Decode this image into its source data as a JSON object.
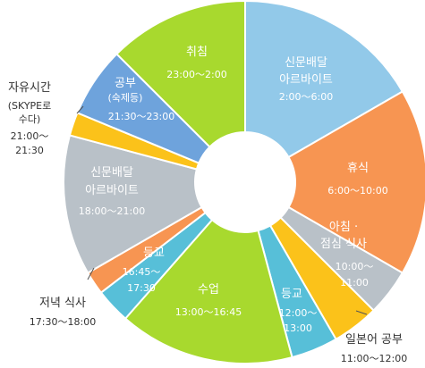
{
  "chart_data": {
    "type": "pie",
    "variant": "donut",
    "unit": "hours",
    "slices": [
      {
        "name": "신문배달 아르바이트",
        "time": "2:00～6:00",
        "value": 4,
        "color": "#92c9e9"
      },
      {
        "name": "휴식",
        "time": "6:00～10:00",
        "value": 4,
        "color": "#f79552"
      },
      {
        "name": "아침 · 점심 식사",
        "time": "10:00～11:00",
        "value": 1,
        "color": "#b9c1c8"
      },
      {
        "name": "일본어 공부",
        "time": "11:00～12:00",
        "value": 1,
        "color": "#fbc21a"
      },
      {
        "name": "등교",
        "time": "12:00～13:00",
        "value": 1,
        "color": "#57bfd8"
      },
      {
        "name": "수업",
        "time": "13:00～16:45",
        "value": 3.75,
        "color": "#a8d92e"
      },
      {
        "name": "등교",
        "time": "16:45～17:30",
        "value": 0.75,
        "color": "#57bfd8"
      },
      {
        "name": "저녁 식사",
        "time": "17:30～18:00",
        "value": 0.5,
        "color": "#f79552"
      },
      {
        "name": "신문배달 아르바이트",
        "time": "18:00～21:00",
        "value": 3,
        "color": "#b9c1c8"
      },
      {
        "name": "자유시간 (SKYPE로 수다)",
        "time": "21:00～ 21:30",
        "value": 0.5,
        "color": "#fbc21a"
      },
      {
        "name": "공부 (숙제등)",
        "time": "21:30～23:00",
        "value": 1.5,
        "color": "#6ea3dc"
      },
      {
        "name": "취침",
        "time": "23:00～2:00",
        "value": 3,
        "color": "#a8d92e"
      }
    ]
  },
  "labels": {
    "s0": {
      "l1": "신문배달",
      "l2": "아르바이트",
      "l3": "2:00～6:00"
    },
    "s1": {
      "l1": "휴식",
      "l2": "6:00～10:00"
    },
    "s2": {
      "l1": "아침 ·",
      "l2": "점심 식사",
      "l3": "10:00～",
      "l4": "11:00"
    },
    "s3": {
      "l1": "일본어 공부",
      "l2": "11:00～12:00"
    },
    "s4": {
      "l1": "등교",
      "l2": "12:00～",
      "l3": "13:00"
    },
    "s5": {
      "l1": "수업",
      "l2": "13:00～16:45"
    },
    "s6": {
      "l1": "등교",
      "l2": "16:45～",
      "l3": "17:30"
    },
    "s7": {
      "l1": "저녁 식사",
      "l2": "17:30～18:00"
    },
    "s8": {
      "l1": "신문배달",
      "l2": "아르바이트",
      "l3": "18:00～21:00"
    },
    "s9": {
      "l1": "자유시간",
      "l2": "(SKYPE로",
      "l3": "수다)",
      "l4": "21:00～",
      "l5": "21:30"
    },
    "s10": {
      "l1": "공부",
      "l2": "(숙제등)",
      "l3": "21:30～23:00"
    },
    "s11": {
      "l1": "취침",
      "l2": "23:00～2:00"
    }
  }
}
